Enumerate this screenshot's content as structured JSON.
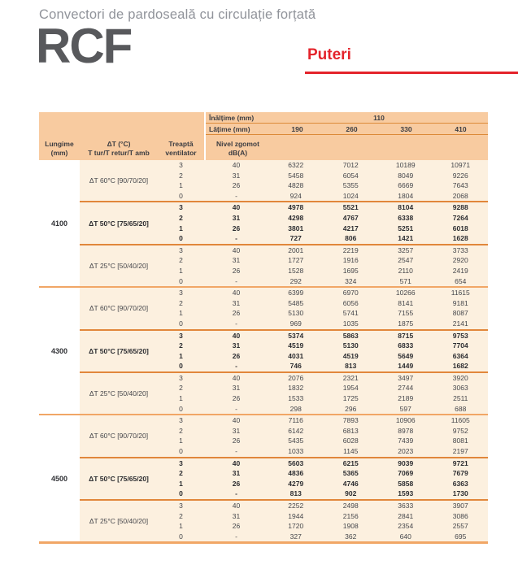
{
  "page": {
    "subtitle": "Convectori de pardoseală cu circulație forțată",
    "product_code": "RCF",
    "section_label": "Puteri",
    "accent_red": "#E4232B",
    "header_orange": "#F8CBA0",
    "body_cream": "#FCF0DF",
    "line_orange": "#E1873B"
  },
  "table": {
    "header": {
      "inaltime_label": "Înălțime (mm)",
      "inaltime_value": "110",
      "latime_label": "Lățime (mm)",
      "widths": [
        "190",
        "260",
        "330",
        "410"
      ],
      "col_lungime_l1": "Lungime",
      "col_lungime_l2": "(mm)",
      "col_dt_l1": "ΔT (°C)",
      "col_dt_l2": "T tur/T retur/T amb",
      "col_treapta_l1": "Treaptă",
      "col_treapta_l2": "ventilator",
      "col_zgomot_l1": "Nivel zgomot",
      "col_zgomot_l2": "dB(A)"
    },
    "groups": [
      {
        "lungime": "4100",
        "blocks": [
          {
            "dt_label": "ΔT 60°C [90/70/20]",
            "bold": false,
            "rows": [
              {
                "treapta": "3",
                "zgomot": "40",
                "values": [
                  "6322",
                  "7012",
                  "10189",
                  "10971"
                ]
              },
              {
                "treapta": "2",
                "zgomot": "31",
                "values": [
                  "5458",
                  "6054",
                  "8049",
                  "9226"
                ]
              },
              {
                "treapta": "1",
                "zgomot": "26",
                "values": [
                  "4828",
                  "5355",
                  "6669",
                  "7643"
                ]
              },
              {
                "treapta": "0",
                "zgomot": "-",
                "values": [
                  "924",
                  "1024",
                  "1804",
                  "2068"
                ]
              }
            ]
          },
          {
            "dt_label": "ΔT 50°C [75/65/20]",
            "bold": true,
            "rows": [
              {
                "treapta": "3",
                "zgomot": "40",
                "values": [
                  "4978",
                  "5521",
                  "8104",
                  "9288"
                ]
              },
              {
                "treapta": "2",
                "zgomot": "31",
                "values": [
                  "4298",
                  "4767",
                  "6338",
                  "7264"
                ]
              },
              {
                "treapta": "1",
                "zgomot": "26",
                "values": [
                  "3801",
                  "4217",
                  "5251",
                  "6018"
                ]
              },
              {
                "treapta": "0",
                "zgomot": "-",
                "values": [
                  "727",
                  "806",
                  "1421",
                  "1628"
                ]
              }
            ]
          },
          {
            "dt_label": "ΔT 25°C [50/40/20]",
            "bold": false,
            "rows": [
              {
                "treapta": "3",
                "zgomot": "40",
                "values": [
                  "2001",
                  "2219",
                  "3257",
                  "3733"
                ]
              },
              {
                "treapta": "2",
                "zgomot": "31",
                "values": [
                  "1727",
                  "1916",
                  "2547",
                  "2920"
                ]
              },
              {
                "treapta": "1",
                "zgomot": "26",
                "values": [
                  "1528",
                  "1695",
                  "2110",
                  "2419"
                ]
              },
              {
                "treapta": "0",
                "zgomot": "-",
                "values": [
                  "292",
                  "324",
                  "571",
                  "654"
                ]
              }
            ]
          }
        ]
      },
      {
        "lungime": "4300",
        "blocks": [
          {
            "dt_label": "ΔT 60°C [90/70/20]",
            "bold": false,
            "rows": [
              {
                "treapta": "3",
                "zgomot": "40",
                "values": [
                  "6399",
                  "6970",
                  "10266",
                  "11615"
                ]
              },
              {
                "treapta": "2",
                "zgomot": "31",
                "values": [
                  "5485",
                  "6056",
                  "8141",
                  "9181"
                ]
              },
              {
                "treapta": "1",
                "zgomot": "26",
                "values": [
                  "5130",
                  "5741",
                  "7155",
                  "8087"
                ]
              },
              {
                "treapta": "0",
                "zgomot": "-",
                "values": [
                  "969",
                  "1035",
                  "1875",
                  "2141"
                ]
              }
            ]
          },
          {
            "dt_label": "ΔT 50°C [75/65/20]",
            "bold": true,
            "rows": [
              {
                "treapta": "3",
                "zgomot": "40",
                "values": [
                  "5374",
                  "5863",
                  "8715",
                  "9753"
                ]
              },
              {
                "treapta": "2",
                "zgomot": "31",
                "values": [
                  "4519",
                  "5130",
                  "6833",
                  "7704"
                ]
              },
              {
                "treapta": "1",
                "zgomot": "26",
                "values": [
                  "4031",
                  "4519",
                  "5649",
                  "6364"
                ]
              },
              {
                "treapta": "0",
                "zgomot": "-",
                "values": [
                  "746",
                  "813",
                  "1449",
                  "1682"
                ]
              }
            ]
          },
          {
            "dt_label": "ΔT 25°C [50/40/20]",
            "bold": false,
            "rows": [
              {
                "treapta": "3",
                "zgomot": "40",
                "values": [
                  "2076",
                  "2321",
                  "3497",
                  "3920"
                ]
              },
              {
                "treapta": "2",
                "zgomot": "31",
                "values": [
                  "1832",
                  "1954",
                  "2744",
                  "3063"
                ]
              },
              {
                "treapta": "1",
                "zgomot": "26",
                "values": [
                  "1533",
                  "1725",
                  "2189",
                  "2511"
                ]
              },
              {
                "treapta": "0",
                "zgomot": "-",
                "values": [
                  "298",
                  "296",
                  "597",
                  "688"
                ]
              }
            ]
          }
        ]
      },
      {
        "lungime": "4500",
        "blocks": [
          {
            "dt_label": "ΔT 60°C [90/70/20]",
            "bold": false,
            "rows": [
              {
                "treapta": "3",
                "zgomot": "40",
                "values": [
                  "7116",
                  "7893",
                  "10906",
                  "11605"
                ]
              },
              {
                "treapta": "2",
                "zgomot": "31",
                "values": [
                  "6142",
                  "6813",
                  "8978",
                  "9752"
                ]
              },
              {
                "treapta": "1",
                "zgomot": "26",
                "values": [
                  "5435",
                  "6028",
                  "7439",
                  "8081"
                ]
              },
              {
                "treapta": "0",
                "zgomot": "-",
                "values": [
                  "1033",
                  "1145",
                  "2023",
                  "2197"
                ]
              }
            ]
          },
          {
            "dt_label": "ΔT 50°C [75/65/20]",
            "bold": true,
            "rows": [
              {
                "treapta": "3",
                "zgomot": "40",
                "values": [
                  "5603",
                  "6215",
                  "9039",
                  "9721"
                ]
              },
              {
                "treapta": "2",
                "zgomot": "31",
                "values": [
                  "4836",
                  "5365",
                  "7069",
                  "7679"
                ]
              },
              {
                "treapta": "1",
                "zgomot": "26",
                "values": [
                  "4279",
                  "4746",
                  "5858",
                  "6363"
                ]
              },
              {
                "treapta": "0",
                "zgomot": "-",
                "values": [
                  "813",
                  "902",
                  "1593",
                  "1730"
                ]
              }
            ]
          },
          {
            "dt_label": "ΔT 25°C [50/40/20]",
            "bold": false,
            "rows": [
              {
                "treapta": "3",
                "zgomot": "40",
                "values": [
                  "2252",
                  "2498",
                  "3633",
                  "3907"
                ]
              },
              {
                "treapta": "2",
                "zgomot": "31",
                "values": [
                  "1944",
                  "2156",
                  "2841",
                  "3086"
                ]
              },
              {
                "treapta": "1",
                "zgomot": "26",
                "values": [
                  "1720",
                  "1908",
                  "2354",
                  "2557"
                ]
              },
              {
                "treapta": "0",
                "zgomot": "-",
                "values": [
                  "327",
                  "362",
                  "640",
                  "695"
                ]
              }
            ]
          }
        ]
      }
    ]
  }
}
